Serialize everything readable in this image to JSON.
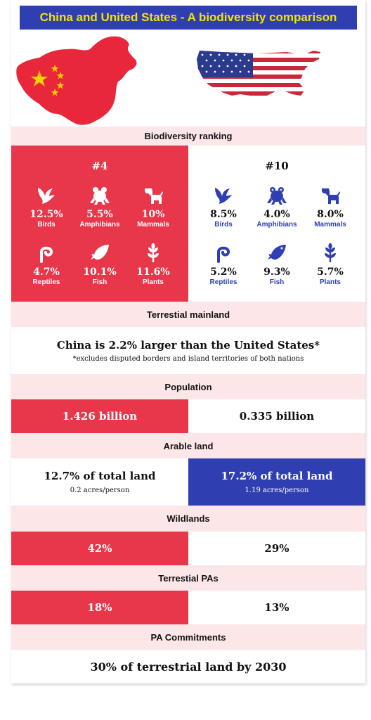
{
  "title": "China and United States - A biodiversity comparison",
  "colors": {
    "red": "#e8364a",
    "blue": "#2f3fb2",
    "pink": "#fde6e8",
    "title_text": "#f5e400"
  },
  "sections": {
    "biodiversity_ranking": "Biodiversity ranking",
    "terrestrial_mainland": "Terrestial mainland",
    "population": "Population",
    "arable_land": "Arable land",
    "wildlands": "Wildlands",
    "terrestrial_pas": "Terrestial PAs",
    "pa_commitments": "PA Commitments"
  },
  "china": {
    "rank": "#4",
    "stats": [
      {
        "icon": "bird-icon",
        "value": "12.5%",
        "label": "Birds"
      },
      {
        "icon": "frog-icon",
        "value": "5.5%",
        "label": "Amphibians"
      },
      {
        "icon": "dog-icon",
        "value": "10%",
        "label": "Mammals"
      },
      {
        "icon": "snake-icon",
        "value": "4.7%",
        "label": "Reptiles"
      },
      {
        "icon": "fish-icon",
        "value": "10.1%",
        "label": "Fish"
      },
      {
        "icon": "plant-icon",
        "value": "11.6%",
        "label": "Plants"
      }
    ],
    "population": "1.426 billion",
    "arable_main": "12.7% of total land",
    "arable_sub": "0.2 acres/person",
    "wildlands": "42%",
    "terrestrial_pas": "18%"
  },
  "usa": {
    "rank": "#10",
    "stats": [
      {
        "icon": "bird-icon",
        "value": "8.5%",
        "label": "Birds"
      },
      {
        "icon": "frog-icon",
        "value": "4.0%",
        "label": "Amphibians"
      },
      {
        "icon": "dog-icon",
        "value": "8.0%",
        "label": "Mammals"
      },
      {
        "icon": "snake-icon",
        "value": "5.2%",
        "label": "Reptiles"
      },
      {
        "icon": "fish-icon",
        "value": "9.3%",
        "label": "Fish"
      },
      {
        "icon": "plant-icon",
        "value": "5.7%",
        "label": "Plants"
      }
    ],
    "population": "0.335 billion",
    "arable_main": "17.2% of total land",
    "arable_sub": "1.19 acres/person",
    "wildlands": "29%",
    "terrestrial_pas": "13%"
  },
  "mainland": {
    "main": "China is 2.2% larger than the United States*",
    "footnote": "*excludes disputed borders and island territories of both nations"
  },
  "pa_commitment": "30% of terrestrial land by 2030"
}
